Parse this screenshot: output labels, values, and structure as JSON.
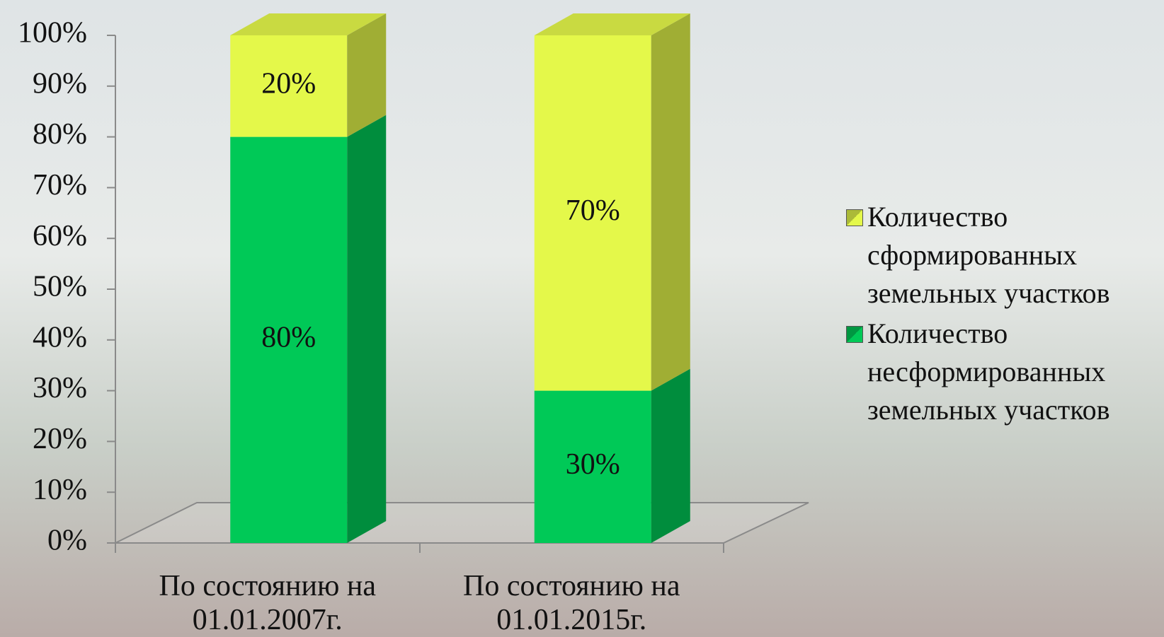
{
  "chart_data": {
    "type": "stacked_bar_3d",
    "categories": [
      "По состоянию на 01.01.2007г.",
      "По состоянию на 01.01.2015г."
    ],
    "series": [
      {
        "name": "Количество несформированных земельных участков",
        "color": "#00c957",
        "values": [
          80,
          30
        ],
        "value_labels": [
          "80%",
          "30%"
        ]
      },
      {
        "name": "Количество сформированных земельных участков",
        "color": "#e4f84a",
        "values": [
          20,
          70
        ],
        "value_labels": [
          "20%",
          "70%"
        ]
      }
    ],
    "ylim": [
      0,
      100
    ],
    "yticks": [
      {
        "value": 0,
        "label": "0%"
      },
      {
        "value": 10,
        "label": "10%"
      },
      {
        "value": 20,
        "label": "20%"
      },
      {
        "value": 30,
        "label": "30%"
      },
      {
        "value": 40,
        "label": "40%"
      },
      {
        "value": 50,
        "label": "50%"
      },
      {
        "value": 60,
        "label": "60%"
      },
      {
        "value": 70,
        "label": "70%"
      },
      {
        "value": 80,
        "label": "80%"
      },
      {
        "value": 90,
        "label": "90%"
      },
      {
        "value": 100,
        "label": "100%"
      }
    ],
    "legend": "right"
  }
}
